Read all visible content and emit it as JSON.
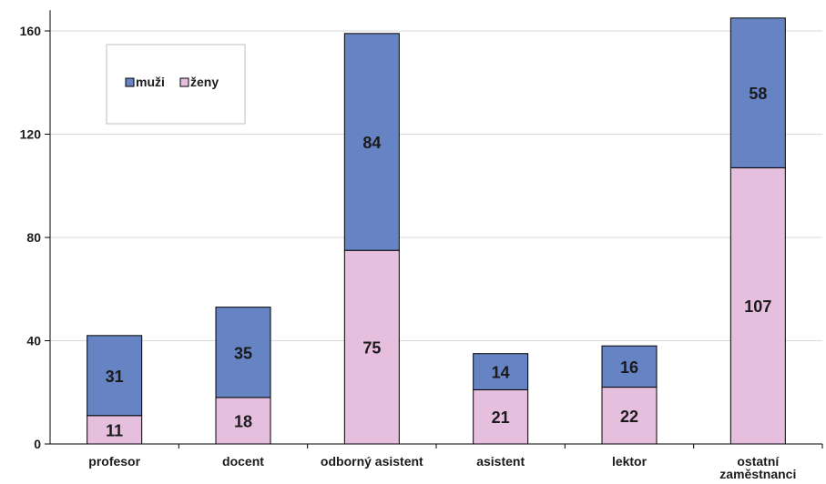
{
  "chart_data": {
    "type": "bar",
    "stacked": true,
    "categories": [
      "profesor",
      "docent",
      "odborný asistent",
      "asistent",
      "lektor",
      "ostatní zaměstnanci"
    ],
    "category_lines": [
      [
        "profesor"
      ],
      [
        "docent"
      ],
      [
        "odborný asistent"
      ],
      [
        "asistent"
      ],
      [
        "lektor"
      ],
      [
        "ostatní",
        "zaměstnanci"
      ]
    ],
    "series": [
      {
        "name": "ženy",
        "color": "#e6bfdf",
        "values": [
          11,
          18,
          75,
          21,
          22,
          107
        ]
      },
      {
        "name": "muži",
        "color": "#6683c4",
        "values": [
          31,
          35,
          84,
          14,
          16,
          58
        ]
      }
    ],
    "legend_order": [
      "muži",
      "ženy"
    ],
    "ylim": [
      0,
      168
    ],
    "yticks": [
      0,
      40,
      80,
      120,
      160
    ],
    "ytick_labels": [
      "0",
      "40",
      "80",
      "120",
      "160"
    ],
    "grid": true,
    "legend_position": "top-left"
  }
}
